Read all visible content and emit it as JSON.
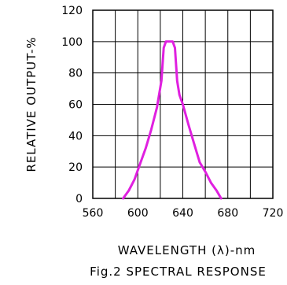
{
  "chart_data": {
    "type": "line",
    "ylabel": "RELATIVE OUTPUT-%",
    "xlabel": "WAVELENGTH (λ)-nm",
    "caption": "Fig.2 SPECTRAL RESPONSE",
    "xlim": [
      560,
      720
    ],
    "ylim": [
      0,
      120
    ],
    "x_ticks": [
      560,
      600,
      640,
      680,
      720
    ],
    "x_tick_labels": [
      "560",
      "600",
      "640",
      "680",
      "720"
    ],
    "y_ticks": [
      0,
      20,
      40,
      60,
      80,
      100,
      120
    ],
    "y_tick_labels": [
      "0",
      "20",
      "40",
      "60",
      "80",
      "100",
      "120"
    ],
    "grid": true,
    "series": [
      {
        "color": "#e020e0",
        "x": [
          587,
          592,
          597,
          602,
          607,
          612,
          617,
          621,
          623,
          625,
          627,
          629,
          631,
          633,
          635,
          637,
          640,
          645,
          650,
          655,
          660,
          665,
          670,
          674
        ],
        "y": [
          0,
          5,
          12,
          22,
          32,
          44,
          58,
          75,
          96,
          100,
          100,
          100,
          100,
          96,
          75,
          66,
          60,
          47,
          35,
          23,
          17,
          10,
          5,
          0
        ]
      }
    ]
  }
}
